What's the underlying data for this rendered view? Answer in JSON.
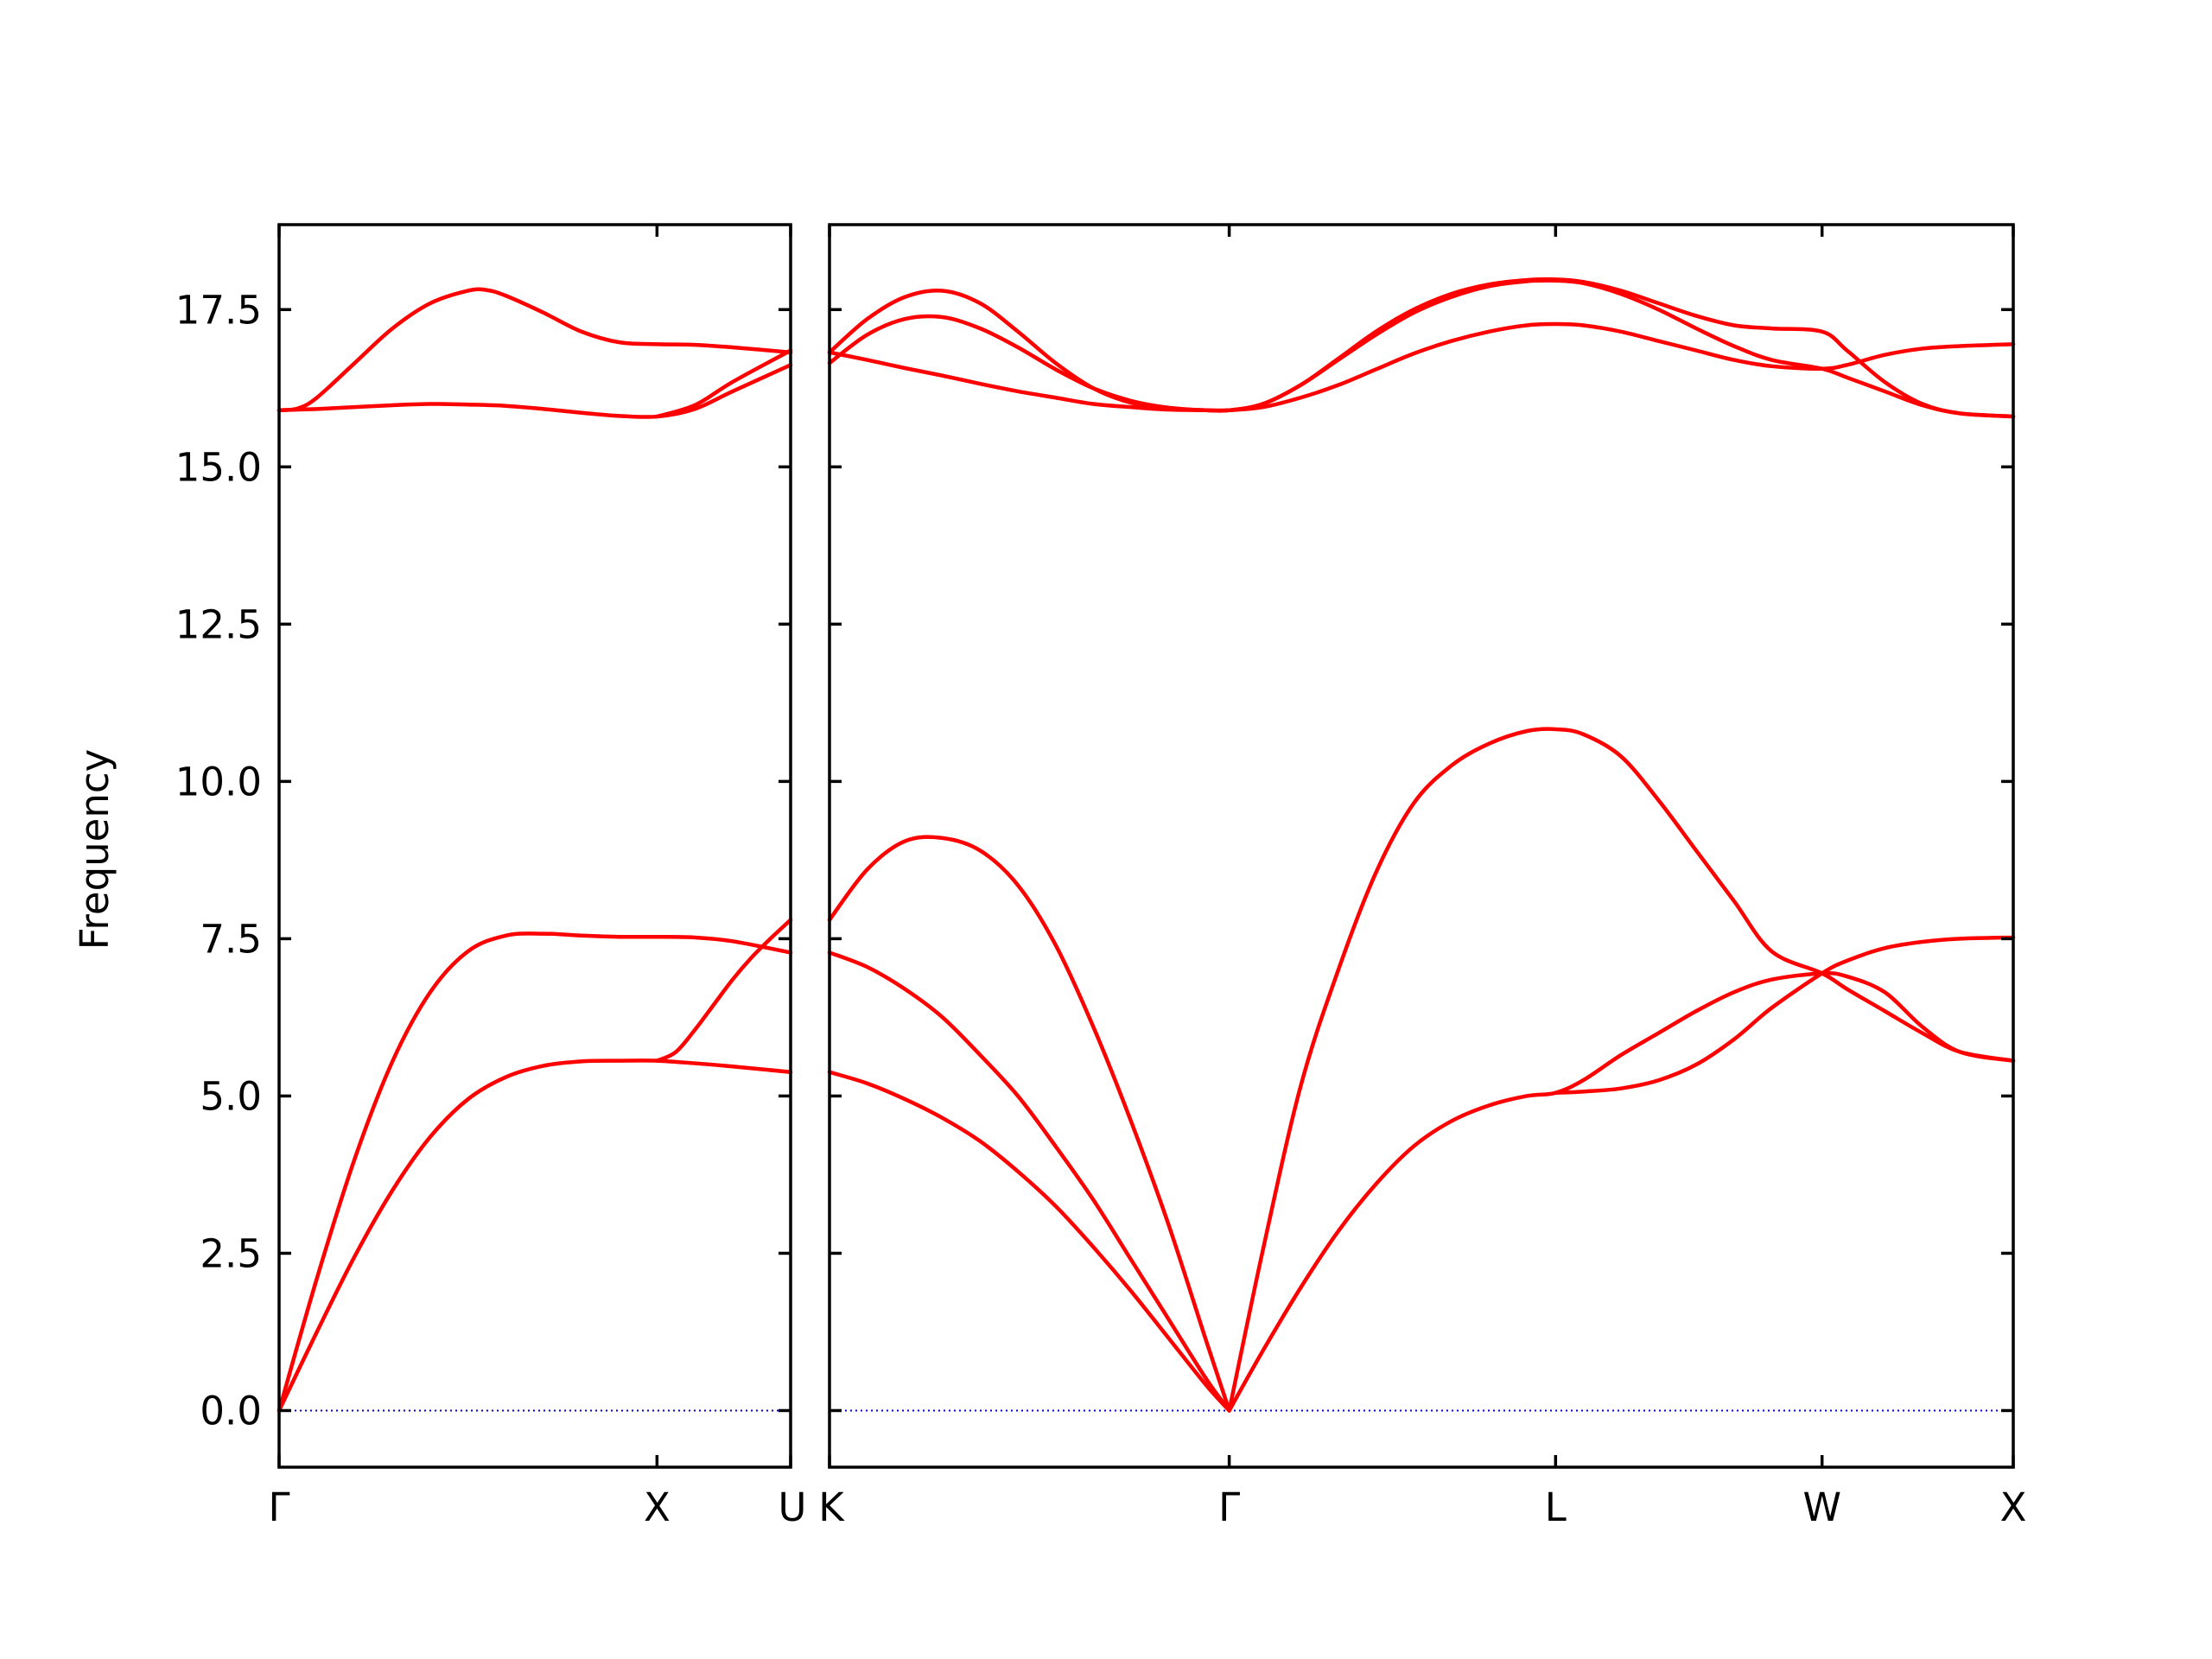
{
  "chart_data": {
    "type": "line",
    "ylabel": "Frequency",
    "ylim": [
      -0.9,
      18.85
    ],
    "yticks": [
      "0.0",
      "2.5",
      "5.0",
      "7.5",
      "10.0",
      "12.5",
      "15.0",
      "17.5"
    ],
    "ytick_values": [
      0,
      2.5,
      5,
      7.5,
      10,
      12.5,
      15,
      17.5
    ],
    "band_color": "#ff0000",
    "zero_line_color": "#0000cd",
    "zero_line": 0,
    "segments": [
      {
        "id": "left",
        "xlim": [
          0,
          1.3536
        ],
        "xticks": [
          {
            "x": 0,
            "label": "Γ"
          },
          {
            "x": 1.0,
            "label": "X"
          },
          {
            "x": 1.3536,
            "label": "U"
          }
        ],
        "series": [
          {
            "x": [
              0,
              0.1,
              0.2,
              0.3,
              0.4,
              0.5,
              0.6,
              0.7,
              0.8,
              0.9,
              1.0,
              1.1,
              1.2,
              1.3536
            ],
            "y": [
              0,
              1.25,
              2.45,
              3.5,
              4.35,
              4.95,
              5.3,
              5.48,
              5.55,
              5.56,
              5.56,
              5.52,
              5.47,
              5.38
            ]
          },
          {
            "x": [
              0,
              0.1,
              0.2,
              0.3,
              0.4,
              0.5,
              0.6,
              0.7,
              0.8,
              0.9,
              1.0,
              1.1,
              1.2,
              1.3536
            ],
            "y": [
              0,
              2.1,
              4.0,
              5.55,
              6.65,
              7.3,
              7.55,
              7.58,
              7.55,
              7.53,
              7.53,
              7.52,
              7.46,
              7.28
            ]
          },
          {
            "x": [
              1.0,
              1.05,
              1.1,
              1.15,
              1.2,
              1.25,
              1.3,
              1.3536
            ],
            "y": [
              5.56,
              5.7,
              6.05,
              6.45,
              6.85,
              7.2,
              7.5,
              7.8
            ]
          },
          {
            "x": [
              0,
              0.1,
              0.2,
              0.3,
              0.4,
              0.5,
              0.6,
              0.7,
              0.8,
              0.9,
              1.0,
              1.1,
              1.2,
              1.3536
            ],
            "y": [
              15.9,
              15.92,
              15.95,
              15.98,
              16.0,
              15.99,
              15.97,
              15.92,
              15.86,
              15.81,
              15.8,
              15.92,
              16.2,
              16.62
            ]
          },
          {
            "x": [
              0,
              0.05,
              0.1,
              0.2,
              0.3,
              0.4,
              0.5,
              0.55,
              0.6,
              0.7,
              0.8,
              0.9,
              1.0,
              1.1,
              1.2,
              1.3536
            ],
            "y": [
              15.9,
              15.93,
              16.1,
              16.65,
              17.2,
              17.6,
              17.8,
              17.81,
              17.72,
              17.45,
              17.15,
              16.98,
              16.95,
              16.94,
              16.9,
              16.82
            ]
          },
          {
            "x": [
              1.0,
              1.1,
              1.2,
              1.3536
            ],
            "y": [
              15.8,
              15.98,
              16.35,
              16.85
            ]
          }
        ]
      },
      {
        "id": "right",
        "xlim": [
          0,
          3.1412
        ],
        "xticks": [
          {
            "x": 0,
            "label": "K"
          },
          {
            "x": 1.0607,
            "label": "Γ"
          },
          {
            "x": 1.9267,
            "label": "L"
          },
          {
            "x": 2.6338,
            "label": "W"
          },
          {
            "x": 3.1412,
            "label": "X"
          }
        ],
        "series": [
          {
            "x": [
              0,
              0.1,
              0.2,
              0.3,
              0.4,
              0.5,
              0.6,
              0.7,
              0.8,
              0.9,
              1.0,
              1.0607
            ],
            "y": [
              7.8,
              8.6,
              9.05,
              9.1,
              8.9,
              8.35,
              7.4,
              6.1,
              4.6,
              2.95,
              1.1,
              0
            ]
          },
          {
            "x": [
              0,
              0.1,
              0.2,
              0.3,
              0.4,
              0.5,
              0.6,
              0.7,
              0.8,
              0.9,
              1.0,
              1.0607
            ],
            "y": [
              7.28,
              7.05,
              6.7,
              6.25,
              5.65,
              5.0,
              4.2,
              3.35,
              2.4,
              1.45,
              0.5,
              0
            ]
          },
          {
            "x": [
              0,
              0.1,
              0.2,
              0.3,
              0.4,
              0.5,
              0.6,
              0.7,
              0.8,
              0.9,
              1.0,
              1.0607
            ],
            "y": [
              5.38,
              5.2,
              4.95,
              4.65,
              4.28,
              3.8,
              3.25,
              2.6,
              1.9,
              1.15,
              0.4,
              0
            ]
          },
          {
            "x": [
              1.0607,
              1.15,
              1.25,
              1.35,
              1.45,
              1.55,
              1.65,
              1.75,
              1.85,
              1.9267,
              2.0,
              2.1,
              2.2,
              2.3,
              2.4,
              2.5,
              2.6338,
              2.7,
              2.8,
              2.9,
              3.0,
              3.1412
            ],
            "y": [
              0,
              2.55,
              5.15,
              7.0,
              8.55,
              9.65,
              10.25,
              10.6,
              10.8,
              10.83,
              10.75,
              10.4,
              9.7,
              8.9,
              8.1,
              7.3,
              6.95,
              6.7,
              6.35,
              6.0,
              5.7,
              5.56
            ]
          },
          {
            "x": [
              1.0607,
              1.15,
              1.25,
              1.35,
              1.45,
              1.55,
              1.65,
              1.75,
              1.85,
              1.9267,
              2.0,
              2.1,
              2.2,
              2.3,
              2.4,
              2.5,
              2.6338,
              2.7,
              2.8,
              2.9,
              3.0,
              3.1412
            ],
            "y": [
              0,
              0.95,
              1.95,
              2.85,
              3.6,
              4.2,
              4.6,
              4.85,
              5.0,
              5.05,
              5.25,
              5.65,
              6.0,
              6.35,
              6.65,
              6.85,
              6.95,
              6.9,
              6.65,
              6.1,
              5.7,
              5.56
            ]
          },
          {
            "x": [
              1.9267,
              2.0,
              2.1,
              2.2,
              2.3,
              2.4,
              2.5,
              2.6338,
              2.7,
              2.8,
              2.9,
              3.0,
              3.1412
            ],
            "y": [
              5.05,
              5.07,
              5.12,
              5.25,
              5.5,
              5.9,
              6.4,
              6.95,
              7.15,
              7.35,
              7.45,
              7.5,
              7.52
            ]
          },
          {
            "x": [
              0,
              0.1,
              0.2,
              0.3,
              0.4,
              0.5,
              0.6,
              0.7,
              0.8,
              0.9,
              1.0,
              1.0607,
              1.15,
              1.25,
              1.35,
              1.45,
              1.55,
              1.65,
              1.75,
              1.85,
              1.9267,
              2.0,
              2.1,
              2.2,
              2.3,
              2.4,
              2.5,
              2.6338,
              2.7,
              2.8,
              2.9,
              3.0,
              3.1412
            ],
            "y": [
              16.82,
              16.7,
              16.57,
              16.45,
              16.32,
              16.2,
              16.1,
              16.0,
              15.95,
              15.91,
              15.9,
              15.9,
              15.95,
              16.1,
              16.3,
              16.55,
              16.8,
              17.0,
              17.15,
              17.25,
              17.27,
              17.25,
              17.15,
              17.0,
              16.85,
              16.7,
              16.6,
              16.56,
              16.62,
              16.78,
              16.88,
              16.92,
              16.95
            ]
          },
          {
            "x": [
              0,
              0.1,
              0.2,
              0.3,
              0.4,
              0.5,
              0.6,
              0.7,
              0.8,
              0.9,
              1.0,
              1.0607,
              1.15,
              1.25,
              1.35,
              1.45,
              1.55,
              1.65,
              1.75,
              1.85,
              1.9267,
              2.0,
              2.1,
              2.2,
              2.3,
              2.4,
              2.5,
              2.6338,
              2.7,
              2.8,
              2.9,
              3.0,
              3.1412
            ],
            "y": [
              16.65,
              17.1,
              17.35,
              17.38,
              17.2,
              16.9,
              16.55,
              16.25,
              16.05,
              15.94,
              15.9,
              15.9,
              16.0,
              16.3,
              16.7,
              17.1,
              17.45,
              17.7,
              17.87,
              17.95,
              17.96,
              17.92,
              17.75,
              17.5,
              17.2,
              16.92,
              16.7,
              16.56,
              16.42,
              16.2,
              15.98,
              15.85,
              15.8
            ]
          },
          {
            "x": [
              0,
              0.1,
              0.2,
              0.3,
              0.4,
              0.5,
              0.6,
              0.7,
              0.8,
              0.9,
              1.0,
              1.0607,
              1.15,
              1.25,
              1.35,
              1.45,
              1.55,
              1.65,
              1.75,
              1.85,
              1.9267,
              2.0,
              2.1,
              2.2,
              2.3,
              2.4,
              2.5,
              2.6338,
              2.7,
              2.8,
              2.9,
              3.0,
              3.1412
            ],
            "y": [
              16.82,
              17.35,
              17.7,
              17.8,
              17.6,
              17.15,
              16.65,
              16.25,
              16.02,
              15.93,
              15.9,
              15.9,
              16.0,
              16.3,
              16.72,
              17.15,
              17.5,
              17.75,
              17.9,
              17.97,
              17.98,
              17.94,
              17.8,
              17.6,
              17.4,
              17.25,
              17.2,
              17.15,
              16.85,
              16.35,
              16.0,
              15.85,
              15.8
            ]
          }
        ]
      }
    ]
  }
}
